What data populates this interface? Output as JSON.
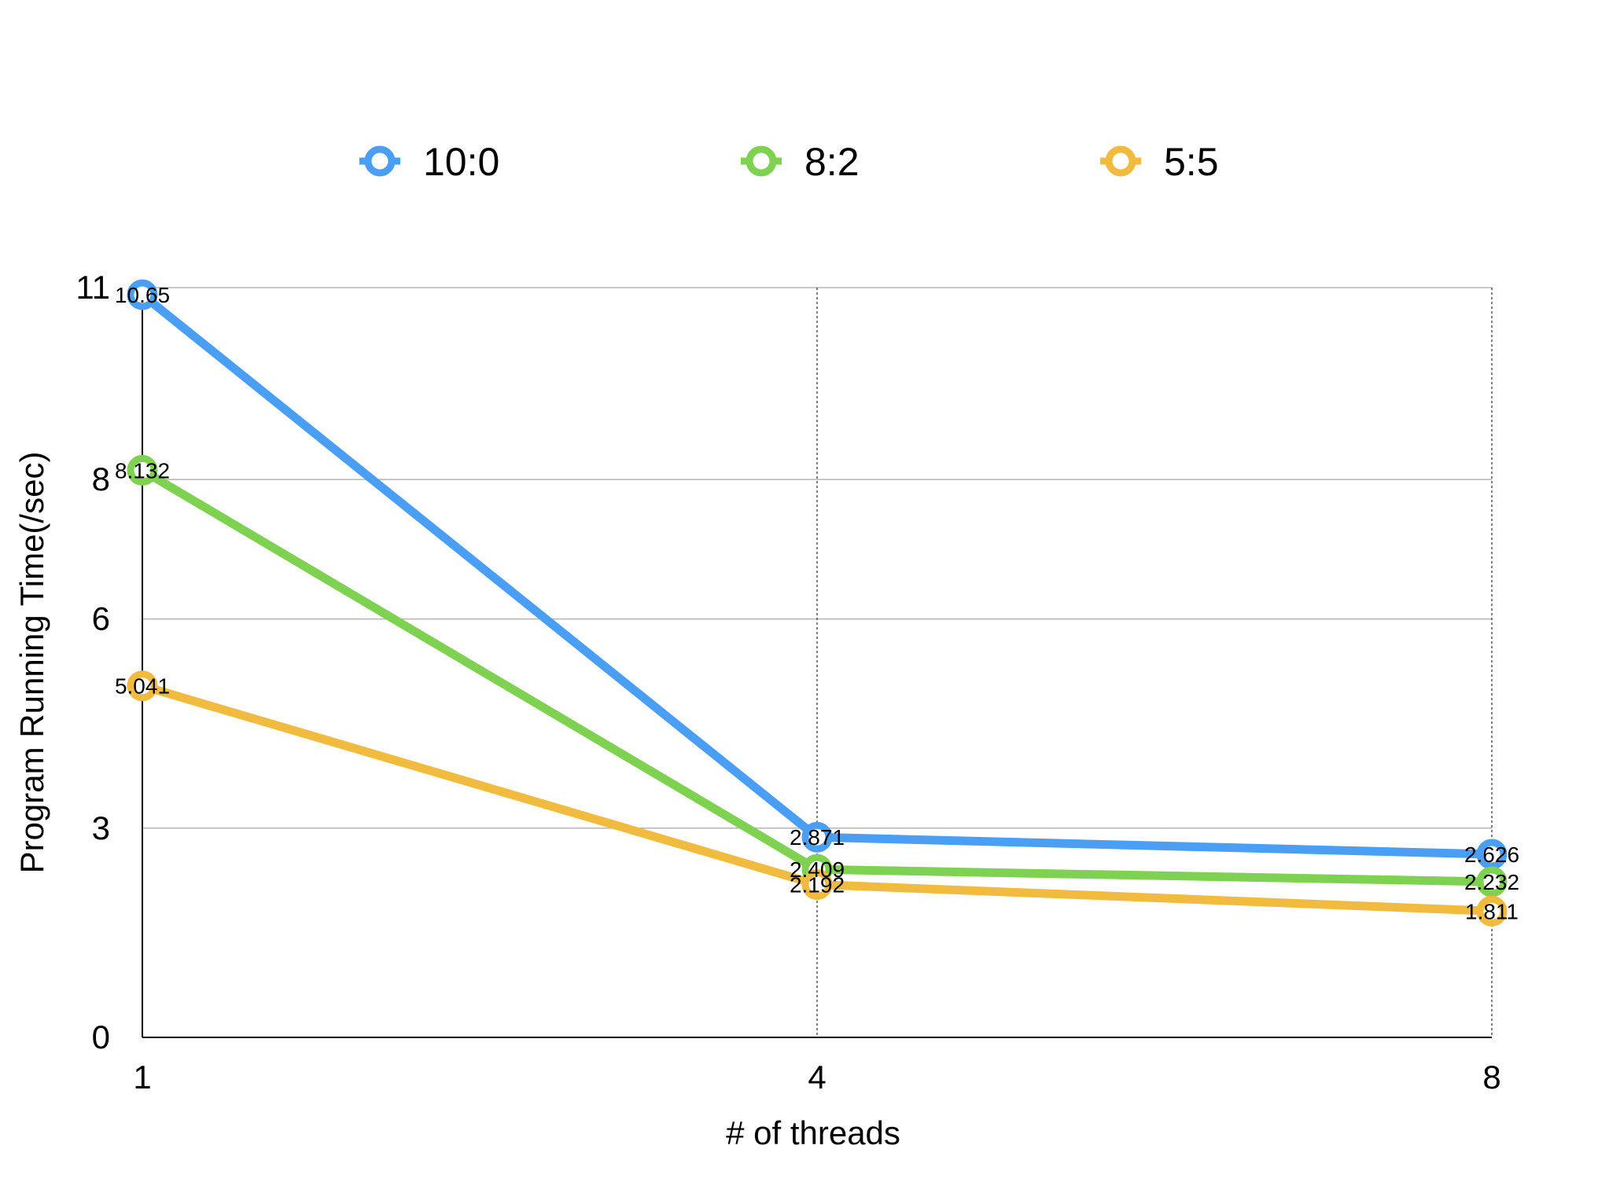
{
  "chart_data": {
    "type": "line",
    "xlabel": "# of threads",
    "ylabel": "Program Running Time(/sec)",
    "x": [
      1,
      4,
      8
    ],
    "x_tick_labels": [
      "1",
      "4",
      "8"
    ],
    "y_ticks": [
      0,
      3,
      6,
      8,
      11
    ],
    "y_tick_labels": [
      "0",
      "3",
      "6",
      "8",
      "11"
    ],
    "ylim": [
      0,
      12
    ],
    "grid": true,
    "legend_position": "top",
    "series": [
      {
        "name": "10:0",
        "color": "#4a9ff5",
        "values": [
          10.65,
          2.871,
          2.626
        ],
        "labels": [
          "10.65",
          "2.871",
          "2.626"
        ]
      },
      {
        "name": "8:2",
        "color": "#7ed151",
        "values": [
          8.132,
          2.409,
          2.232
        ],
        "labels": [
          "8.132",
          "2.409",
          "2.232"
        ]
      },
      {
        "name": "5:5",
        "color": "#f0bb3f",
        "values": [
          5.041,
          2.192,
          1.811
        ],
        "labels": [
          "5.041",
          "2.192",
          "1.811"
        ]
      }
    ]
  }
}
